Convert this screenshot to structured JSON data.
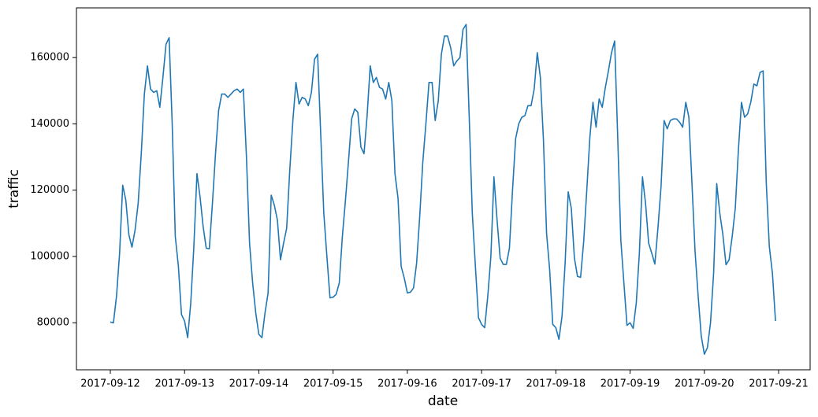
{
  "chart_data": {
    "type": "line",
    "xlabel": "date",
    "ylabel": "traffic",
    "xticks": [
      "2017-09-12",
      "2017-09-13",
      "2017-09-14",
      "2017-09-15",
      "2017-09-16",
      "2017-09-17",
      "2017-09-18",
      "2017-09-19",
      "2017-09-20",
      "2017-09-21"
    ],
    "ylim": [
      65800,
      175000
    ],
    "yticks": [
      80000,
      100000,
      120000,
      140000,
      160000
    ],
    "grid": false,
    "series": [
      {
        "name": "traffic",
        "color": "#1f77b4",
        "values": [
          80200,
          80000,
          88000,
          101000,
          121500,
          117000,
          106500,
          102800,
          108000,
          116000,
          131000,
          149000,
          157500,
          150500,
          149500,
          150000,
          145000,
          154000,
          164000,
          166000,
          140000,
          106000,
          97000,
          82500,
          80500,
          75500,
          86000,
          103000,
          125000,
          118000,
          109000,
          102500,
          102300,
          116000,
          131000,
          144000,
          149000,
          149000,
          148000,
          149000,
          150000,
          150500,
          149500,
          150500,
          130000,
          104000,
          92000,
          83000,
          76500,
          75500,
          83000,
          89000,
          118500,
          115500,
          111000,
          99000,
          104000,
          108500,
          126000,
          141000,
          152500,
          146000,
          148000,
          147500,
          145500,
          149500,
          159500,
          161000,
          137000,
          113000,
          100000,
          87500,
          87700,
          88600,
          92000,
          106000,
          117000,
          129000,
          141500,
          144500,
          143500,
          133000,
          131000,
          142500,
          157500,
          152500,
          154000,
          151000,
          150500,
          147500,
          152500,
          147000,
          125000,
          117500,
          97000,
          93500,
          89000,
          89200,
          90500,
          98000,
          112000,
          128500,
          140000,
          152500,
          152500,
          141000,
          147000,
          161000,
          166500,
          166500,
          163000,
          157500,
          159000,
          160000,
          168500,
          170000,
          142000,
          113000,
          97000,
          81500,
          79500,
          78500,
          88000,
          100000,
          124000,
          111000,
          99500,
          97600,
          97600,
          102500,
          120000,
          135500,
          140000,
          142000,
          142500,
          145500,
          145500,
          150500,
          161500,
          154000,
          135000,
          107000,
          96000,
          79500,
          78500,
          75000,
          82000,
          98000,
          119500,
          114500,
          99500,
          94000,
          93700,
          104500,
          120000,
          136000,
          146500,
          139000,
          147500,
          145000,
          151000,
          156000,
          161500,
          165000,
          136000,
          105000,
          92000,
          79200,
          80000,
          78300,
          86000,
          101000,
          124000,
          116000,
          104000,
          101000,
          97700,
          108500,
          121000,
          141000,
          138500,
          141000,
          141500,
          141500,
          140500,
          139000,
          146500,
          142000,
          122000,
          101500,
          88000,
          76000,
          70500,
          72500,
          80000,
          95000,
          122000,
          113000,
          106500,
          97500,
          99000,
          106000,
          114500,
          132000,
          146500,
          142000,
          143000,
          146500,
          152000,
          151500,
          155500,
          156000,
          122500,
          103000,
          95000,
          80500
        ]
      }
    ]
  }
}
